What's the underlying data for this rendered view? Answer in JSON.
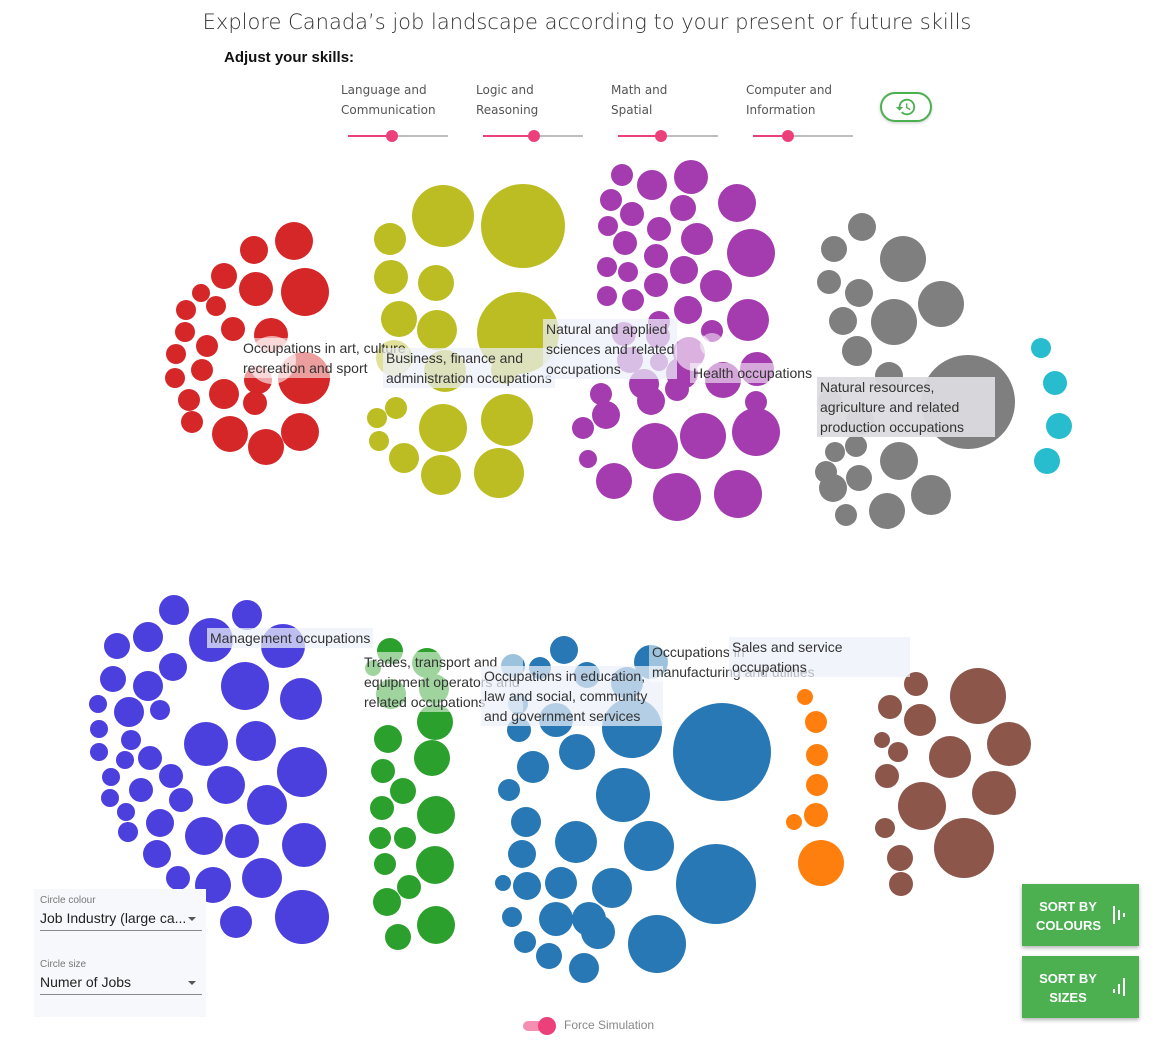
{
  "header": {
    "title": "Explore Canada’s job landscape according to your present or future skills",
    "adjust_label": "Adjust your skills:"
  },
  "skills": [
    {
      "label": "Language and\nCommunication",
      "level": 0.44
    },
    {
      "label": "Logic and\nReasoning",
      "level": 0.51
    },
    {
      "label": "Math and\nSpatial",
      "level": 0.43
    },
    {
      "label": "Computer and\nInformation",
      "level": 0.35
    }
  ],
  "reset_button": {
    "icon": "history-icon"
  },
  "groups": [
    {
      "name": "Occupations in art, culture\nrecreation and sport",
      "color": "#d62728"
    },
    {
      "name": "Business, finance and\nadministration occupations",
      "color": "#bcbd22"
    },
    {
      "name": "Natural and applied\nsciences and related\noccupations",
      "color": "#a43cb0"
    },
    {
      "name": "Health occupations",
      "color": "#a43cb0"
    },
    {
      "name": "Natural resources,\nagriculture and related\nproduction occupations",
      "color": "#7f7f7f"
    },
    {
      "name": "Management occupations",
      "color": "#4b3fdd"
    },
    {
      "name": "Trades, transport and\nequipment operators and\nrelated occupations",
      "color": "#2ca02c"
    },
    {
      "name": "Occupations in education,\nlaw and social, community\nand government services",
      "color": "#2778b4"
    },
    {
      "name": "Occupations in\nmanufacturing and utilities",
      "color": "#2778b4"
    },
    {
      "name": "Sales and service\noccupations",
      "color": "#ff7f0e"
    }
  ],
  "extra_colors": {
    "teal": "#27bdcf",
    "brown": "#8c564b"
  },
  "controls": {
    "circle_colour_label": "Circle colour",
    "circle_colour_value": "Job Industry (large ca...",
    "circle_size_label": "Circle size",
    "circle_size_value": "Numer of Jobs"
  },
  "sort_buttons": {
    "colours": "SORT BY\nCOLOURS",
    "sizes": "SORT BY\nSIZES"
  },
  "force_simulation": {
    "label": "Force Simulation",
    "enabled": true
  }
}
